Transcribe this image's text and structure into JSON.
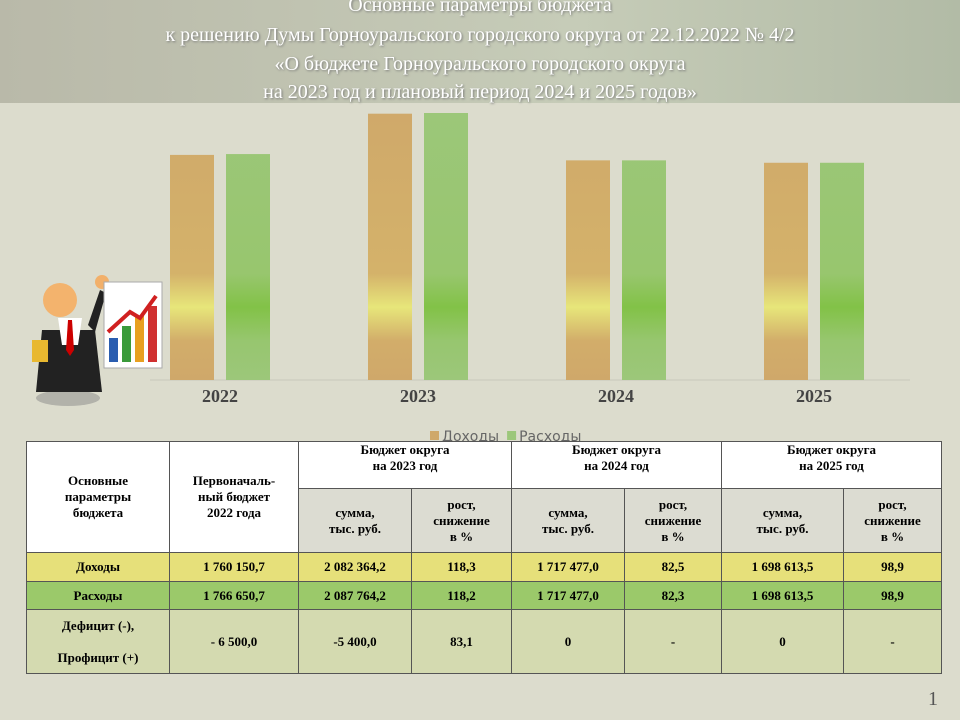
{
  "header": {
    "title_lines": [
      "Основные параметры бюджета",
      "к решению Думы Горноуральского городского округа от 22.12.2022 № 4/2",
      "«О бюджете Горноуральского городского округа",
      "на 2023 год и плановый период 2024 и 2025 годов»"
    ]
  },
  "chart_data": {
    "type": "bar",
    "categories": [
      "2022",
      "2023",
      "2024",
      "2025"
    ],
    "series": [
      {
        "name": "Доходы",
        "color": "#cfa86a",
        "values": [
          1760150.7,
          2082364.2,
          1717477.0,
          1698613.5
        ]
      },
      {
        "name": "Расходы",
        "color": "#9cc77a",
        "values": [
          1766650.7,
          2087764.2,
          1717477.0,
          1698613.5
        ]
      }
    ]
  },
  "table": {
    "head": [
      [
        "Основные\nпараметры\nбюджета",
        "Первоначаль-\nный бюджет\n2022 года",
        "Бюджет округа\nна 2023 год",
        "Бюджет округа\nна 2024 год",
        "Бюджет округа\nна 2025 год"
      ],
      [
        "сумма,\nтыс. руб.",
        "рост,\nснижение\nв %",
        "сумма,\nтыс. руб.",
        "рост,\nснижение\nв %",
        "сумма,\nтыс. руб.",
        "рост,\nснижение\nв %"
      ]
    ],
    "rows": [
      [
        "Доходы",
        "1 760 150,7",
        "2 082 364,2",
        "118,3",
        "1 717 477,0",
        "82,5",
        "1 698 613,5",
        "98,9"
      ],
      [
        "Расходы",
        "1 766 650,7",
        "2 087 764,2",
        "118,2",
        "1 717 477,0",
        "82,3",
        "1 698 613,5",
        "98,9"
      ],
      [
        "Дефицит (-),\n\nПрофицит (+)",
        "- 6 500,0",
        "-5 400,0",
        "83,1",
        "0",
        "-",
        "0",
        "-"
      ]
    ]
  },
  "page_number": "1"
}
